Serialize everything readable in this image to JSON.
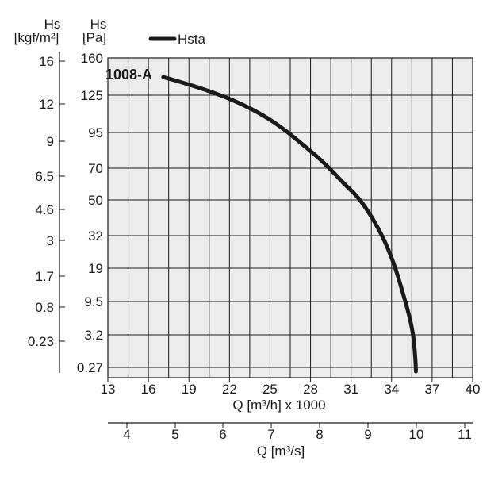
{
  "chart_data": {
    "type": "line",
    "xlabel": "Q [m³/h] x 1000",
    "x2label": "Q [m³/s]",
    "ylabel_left_name": "Hs",
    "ylabel_left_unit": "[kgf/m²]",
    "ylabel_right_name": "Hs",
    "ylabel_right_unit": "[Pa]",
    "x_ticks": [
      "13",
      "16",
      "19",
      "22",
      "25",
      "28",
      "31",
      "34",
      "37",
      "40"
    ],
    "x2_ticks": [
      "4",
      "5",
      "6",
      "7",
      "8",
      "9",
      "10",
      "11"
    ],
    "y_pa_ticks": [
      "160",
      "125",
      "95",
      "70",
      "50",
      "32",
      "19",
      "9.5",
      "3.2",
      "0.27"
    ],
    "y_kgf_ticks": [
      "16",
      "12",
      "9",
      "6.5",
      "4.6",
      "3",
      "1.7",
      "0.8",
      "0.23"
    ],
    "xlim": [
      13,
      40
    ],
    "grid": true,
    "legend_position": "top",
    "series": [
      {
        "name": "Hsta",
        "color": "#1a1a1a",
        "curve_label": "1008-A",
        "points": [
          [
            17.1,
            142
          ],
          [
            18.5,
            137
          ],
          [
            20.5,
            129
          ],
          [
            22.5,
            120
          ],
          [
            24.5,
            109
          ],
          [
            26.0,
            98
          ],
          [
            27.5,
            86
          ],
          [
            29.0,
            74
          ],
          [
            30.5,
            60
          ],
          [
            31.5,
            52
          ],
          [
            32.5,
            42
          ],
          [
            33.5,
            30
          ],
          [
            34.3,
            19
          ],
          [
            34.9,
            11
          ],
          [
            35.3,
            7
          ],
          [
            35.6,
            3.2
          ],
          [
            35.7,
            2
          ],
          [
            35.8,
            0.27
          ],
          [
            35.8,
            0.1
          ]
        ]
      }
    ]
  }
}
